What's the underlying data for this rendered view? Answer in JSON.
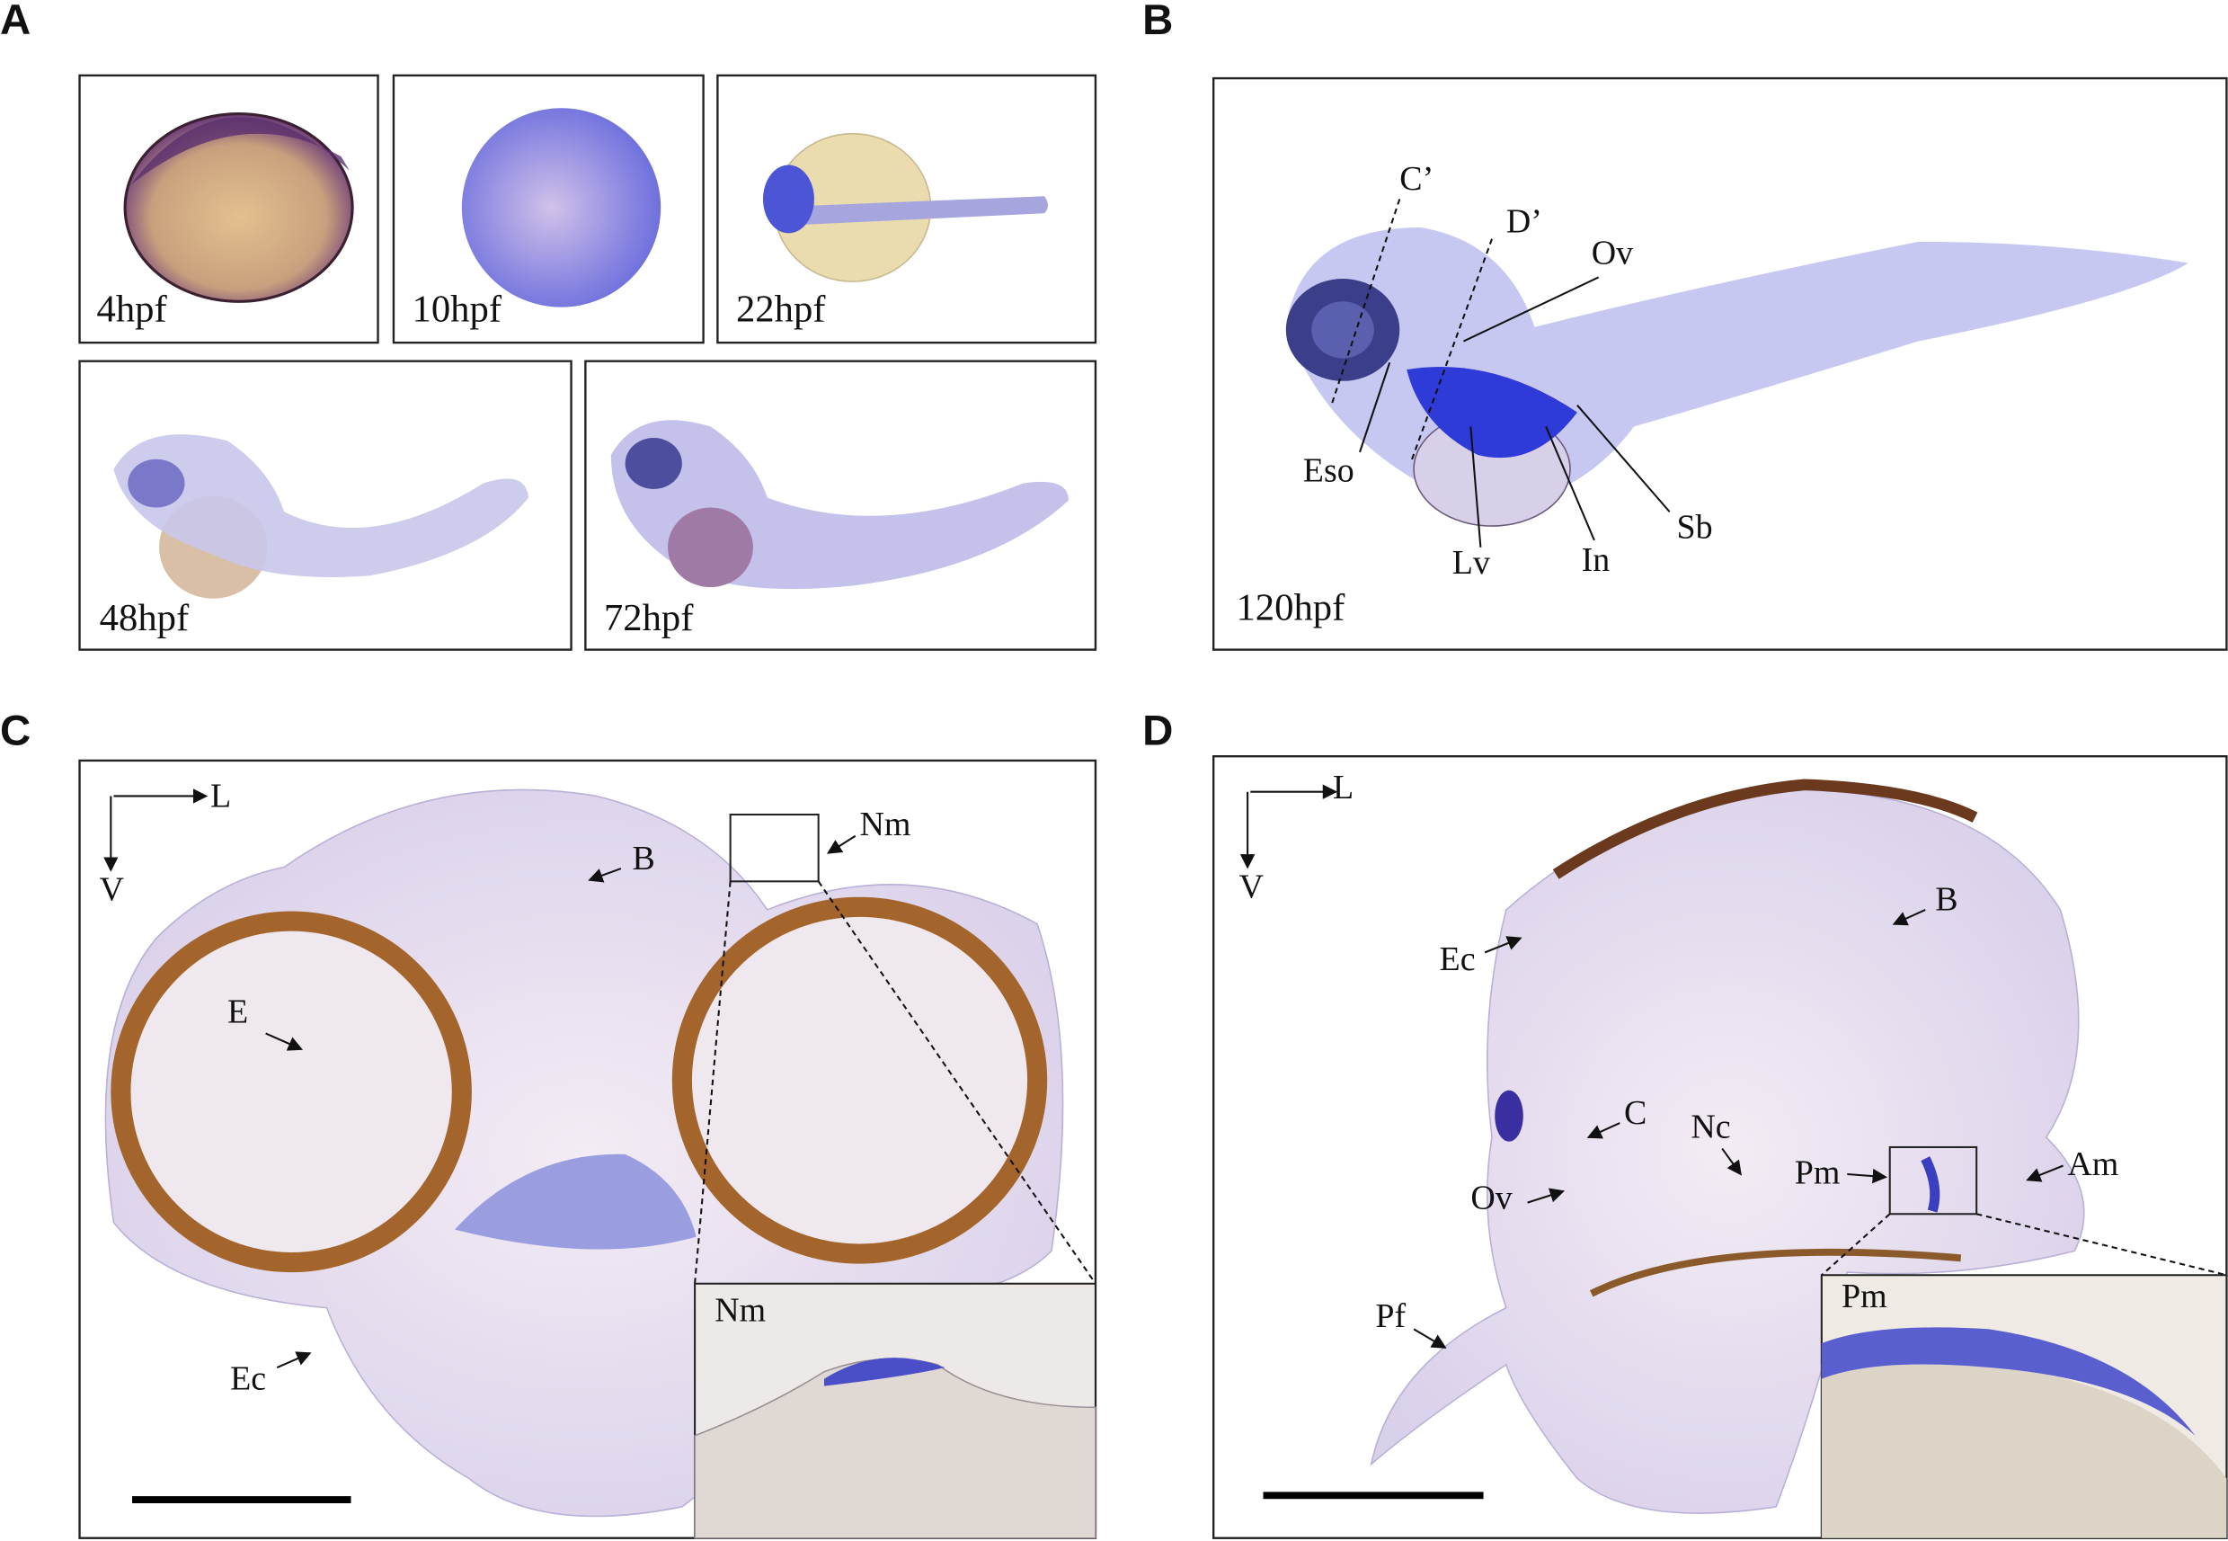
{
  "panels": [
    {
      "letter": "A",
      "stages": [
        "4hpf",
        "10hpf",
        "22hpf",
        "48hpf",
        "72hpf"
      ]
    },
    {
      "letter": "B",
      "stage": "120hpf",
      "annotations": [
        "C’",
        "D’",
        "Ov",
        "Eso",
        "Lv",
        "In",
        "Sb"
      ]
    },
    {
      "letter": "C",
      "axes": [
        "L",
        "V"
      ],
      "annotations": [
        "B",
        "Nm",
        "E",
        "Ec"
      ],
      "inset_label": "Nm"
    },
    {
      "letter": "D",
      "axes": [
        "L",
        "V"
      ],
      "annotations": [
        "Ec",
        "B",
        "C",
        "Nc",
        "Pm",
        "Am",
        "Ov",
        "Pf"
      ],
      "inset_label": "Pm"
    }
  ]
}
